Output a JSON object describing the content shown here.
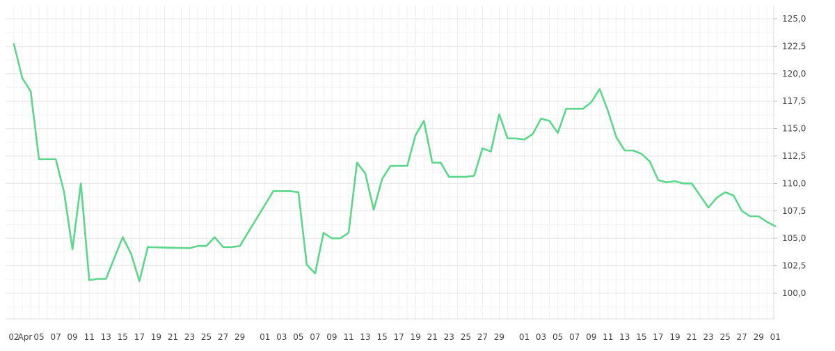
{
  "chart_data": {
    "type": "line",
    "title": "",
    "xlabel": "",
    "ylabel": "",
    "y_axis_position": "right",
    "ylim": [
      97.5,
      126.0
    ],
    "grid": true,
    "legend": "none",
    "y_ticks": [
      "100,0",
      "102,5",
      "105,0",
      "107,5",
      "110,0",
      "112,5",
      "115,0",
      "117,5",
      "120,0",
      "122,5",
      "125,0"
    ],
    "x_ticks": [
      "02",
      "Apr",
      "05",
      "07",
      "09",
      "11",
      "13",
      "15",
      "17",
      "19",
      "21",
      "23",
      "25",
      "27",
      "29",
      "01",
      "03",
      "05",
      "07",
      "09",
      "11",
      "13",
      "15",
      "17",
      "19",
      "21",
      "23",
      "25",
      "27",
      "29",
      "01",
      "03",
      "05",
      "07",
      "09",
      "11",
      "13",
      "15",
      "17",
      "19",
      "21",
      "23",
      "25",
      "27",
      "29",
      "01"
    ],
    "series": [
      {
        "color": "#5cd68a",
        "points": [
          [
            "2020-04-02",
            122.7
          ],
          [
            "2020-04-03",
            119.6
          ],
          [
            "2020-04-04",
            118.4
          ],
          [
            "2020-04-05",
            112.2
          ],
          [
            "2020-04-06",
            112.2
          ],
          [
            "2020-04-07",
            112.2
          ],
          [
            "2020-04-08",
            109.2
          ],
          [
            "2020-04-09",
            104.0
          ],
          [
            "2020-04-10",
            110.0
          ],
          [
            "2020-04-11",
            101.2
          ],
          [
            "2020-04-12",
            101.3
          ],
          [
            "2020-04-13",
            101.3
          ],
          [
            "2020-04-14",
            103.2
          ],
          [
            "2020-04-15",
            105.1
          ],
          [
            "2020-04-16",
            103.6
          ],
          [
            "2020-04-17",
            101.1
          ],
          [
            "2020-04-18",
            104.2
          ],
          [
            "2020-04-23",
            104.1
          ],
          [
            "2020-04-24",
            104.3
          ],
          [
            "2020-04-25",
            104.3
          ],
          [
            "2020-04-26",
            105.1
          ],
          [
            "2020-04-27",
            104.2
          ],
          [
            "2020-04-28",
            104.2
          ],
          [
            "2020-04-29",
            104.3
          ],
          [
            "2020-05-03",
            109.3
          ],
          [
            "2020-05-05",
            109.3
          ],
          [
            "2020-05-06",
            109.2
          ],
          [
            "2020-05-07",
            102.6
          ],
          [
            "2020-05-08",
            101.8
          ],
          [
            "2020-05-09",
            105.5
          ],
          [
            "2020-05-10",
            105.0
          ],
          [
            "2020-05-11",
            105.0
          ],
          [
            "2020-05-12",
            105.5
          ],
          [
            "2020-05-13",
            111.9
          ],
          [
            "2020-05-14",
            110.9
          ],
          [
            "2020-05-15",
            107.6
          ],
          [
            "2020-05-16",
            110.4
          ],
          [
            "2020-05-17",
            111.6
          ],
          [
            "2020-05-19",
            111.6
          ],
          [
            "2020-05-20",
            114.4
          ],
          [
            "2020-05-21",
            115.7
          ],
          [
            "2020-05-22",
            111.9
          ],
          [
            "2020-05-23",
            111.9
          ],
          [
            "2020-05-24",
            110.6
          ],
          [
            "2020-05-26",
            110.6
          ],
          [
            "2020-05-27",
            110.7
          ],
          [
            "2020-05-28",
            113.2
          ],
          [
            "2020-05-29",
            112.9
          ],
          [
            "2020-05-30",
            116.3
          ],
          [
            "2020-05-31",
            114.1
          ],
          [
            "2020-06-01",
            114.1
          ],
          [
            "2020-06-02",
            114.0
          ],
          [
            "2020-06-03",
            114.5
          ],
          [
            "2020-06-04",
            115.9
          ],
          [
            "2020-06-05",
            115.7
          ],
          [
            "2020-06-06",
            114.6
          ],
          [
            "2020-06-07",
            116.8
          ],
          [
            "2020-06-09",
            116.8
          ],
          [
            "2020-06-10",
            117.4
          ],
          [
            "2020-06-11",
            118.6
          ],
          [
            "2020-06-12",
            116.6
          ],
          [
            "2020-06-13",
            114.2
          ],
          [
            "2020-06-14",
            113.0
          ],
          [
            "2020-06-15",
            113.0
          ],
          [
            "2020-06-16",
            112.7
          ],
          [
            "2020-06-17",
            112.0
          ],
          [
            "2020-06-18",
            110.3
          ],
          [
            "2020-06-19",
            110.1
          ],
          [
            "2020-06-20",
            110.2
          ],
          [
            "2020-06-21",
            110.0
          ],
          [
            "2020-06-22",
            110.0
          ],
          [
            "2020-06-24",
            107.8
          ],
          [
            "2020-06-25",
            108.7
          ],
          [
            "2020-06-26",
            109.2
          ],
          [
            "2020-06-27",
            108.9
          ],
          [
            "2020-06-28",
            107.5
          ],
          [
            "2020-06-29",
            107.0
          ],
          [
            "2020-06-30",
            107.0
          ],
          [
            "2020-07-01",
            106.5
          ],
          [
            "2020-07-02",
            106.1
          ]
        ]
      }
    ]
  }
}
